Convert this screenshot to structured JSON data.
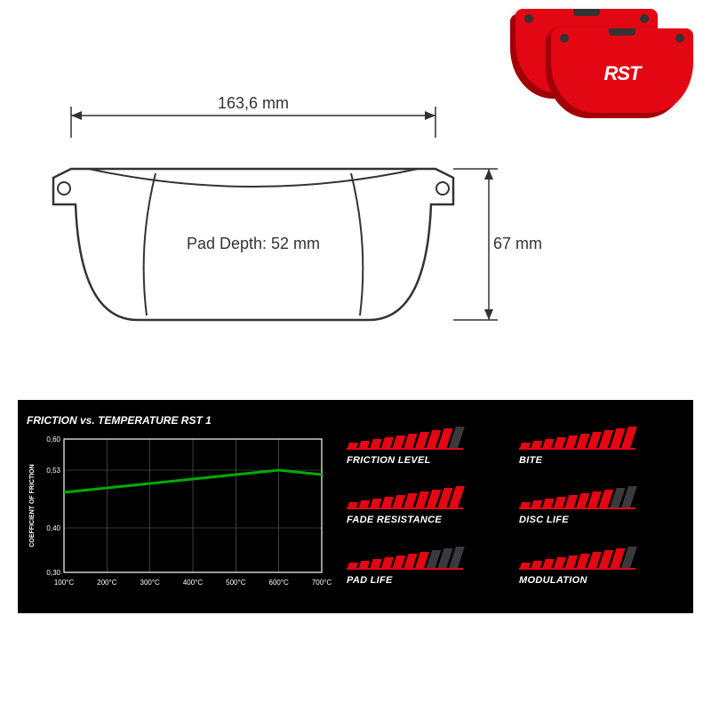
{
  "product_photo": {
    "logo_text": "RST",
    "pad_color": "#e30613",
    "shadow_color": "#a00008"
  },
  "tech_drawing": {
    "width_label": "163,6 mm",
    "height_label": "67 mm",
    "depth_label": "Pad Depth: 52 mm",
    "line_color": "#333333",
    "fill_color": "#ffffff",
    "label_fontsize": 18
  },
  "chart": {
    "title": "FRICTION vs. TEMPERATURE RST 1",
    "ylabel": "COEFFICIENT OF FRICTION",
    "x_ticks": [
      "100°C",
      "200°C",
      "300°C",
      "400°C",
      "500°C",
      "600°C",
      "700°C"
    ],
    "y_ticks": [
      "0,30",
      "0,40",
      "0,53",
      "0,60"
    ],
    "y_tick_positions": [
      0.3,
      0.4,
      0.53,
      0.6
    ],
    "ylim": [
      0.3,
      0.6
    ],
    "xlim": [
      100,
      700
    ],
    "series": {
      "color": "#00aa00",
      "line_width": 3,
      "points": [
        {
          "x": 100,
          "y": 0.48
        },
        {
          "x": 200,
          "y": 0.49
        },
        {
          "x": 300,
          "y": 0.5
        },
        {
          "x": 400,
          "y": 0.51
        },
        {
          "x": 500,
          "y": 0.52
        },
        {
          "x": 600,
          "y": 0.53
        },
        {
          "x": 700,
          "y": 0.52
        }
      ]
    },
    "grid_color": "#666666",
    "axis_color": "#ffffff",
    "text_color": "#ffffff",
    "label_fontsize": 8
  },
  "metrics": [
    {
      "label": "FRICTION LEVEL",
      "filled": 9,
      "total": 10
    },
    {
      "label": "BITE",
      "filled": 10,
      "total": 10
    },
    {
      "label": "FADE RESISTANCE",
      "filled": 10,
      "total": 10
    },
    {
      "label": "DISC LIFE",
      "filled": 8,
      "total": 10
    },
    {
      "label": "PAD LIFE",
      "filled": 7,
      "total": 10
    },
    {
      "label": "MODULATION",
      "filled": 9,
      "total": 10
    }
  ],
  "metric_style": {
    "bar_color_filled": "#e30613",
    "bar_color_empty": "#3a393d",
    "underline_color": "#e30613"
  }
}
